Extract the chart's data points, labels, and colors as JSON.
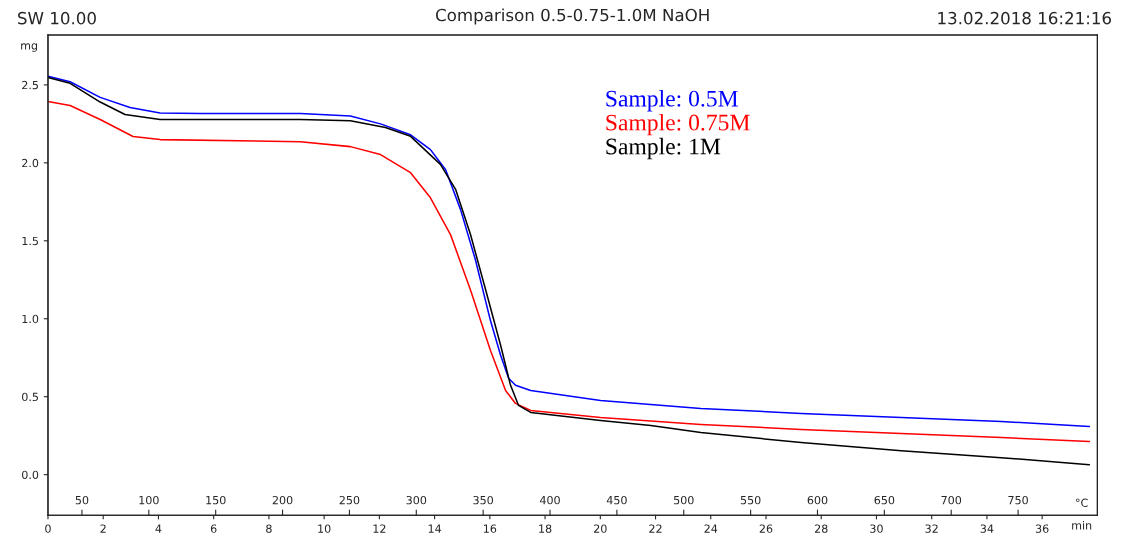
{
  "chart_data": {
    "type": "line",
    "title": "Comparison 0.5-0.75-1.0M NaOH",
    "annotations": [
      "SW 10.00",
      "13.02.2018 16:21:16"
    ],
    "ylabel": "mg",
    "xlabel": "min",
    "x2label": "°C",
    "xlim": [
      0,
      38
    ],
    "xticks": [
      0,
      2,
      4,
      6,
      8,
      10,
      12,
      14,
      16,
      18,
      20,
      22,
      24,
      26,
      28,
      30,
      32,
      34,
      36
    ],
    "x2lim": [
      24.6,
      809.3
    ],
    "x2ticks": [
      50,
      100,
      150,
      200,
      250,
      300,
      350,
      400,
      450,
      500,
      550,
      600,
      650,
      700,
      750
    ],
    "ylim": [
      -0.26,
      2.82
    ],
    "yticks": [
      {
        "value": 0,
        "label": "0.0"
      },
      0.5,
      {
        "value": 1,
        "label": "1.0"
      },
      1.5,
      {
        "value": 2,
        "label": "2.0"
      },
      2.5
    ],
    "grid": false,
    "legend": "top",
    "marker": "none",
    "line_style": "solid",
    "series": [
      {
        "name": "Sample: 0.5M",
        "color": "#0000ff",
        "x": [
          0,
          0.8,
          1.89,
          2.97,
          4.06,
          5.51,
          9.14,
          10.95,
          12.04,
          13.13,
          13.85,
          14.4,
          14.94,
          15.48,
          16.02,
          16.39,
          16.68,
          16.93,
          17.48,
          20.01,
          23.64,
          27.27,
          30.9,
          34.52,
          37.71
        ],
        "values": [
          2.555,
          2.52,
          2.42,
          2.355,
          2.32,
          2.317,
          2.317,
          2.3,
          2.25,
          2.18,
          2.085,
          1.956,
          1.7,
          1.377,
          0.99,
          0.766,
          0.618,
          0.573,
          0.54,
          0.476,
          0.425,
          0.393,
          0.367,
          0.341,
          0.309
        ]
      },
      {
        "name": "Sample: 0.75M",
        "color": "#ff0000",
        "x": [
          0,
          0.8,
          1.89,
          3.08,
          4.06,
          9.14,
          10.95,
          12.04,
          13.13,
          13.85,
          14.58,
          15.3,
          16.02,
          16.57,
          16.93,
          17.48,
          20.01,
          23.64,
          27.27,
          30.9,
          34.52,
          37.71
        ],
        "values": [
          2.394,
          2.368,
          2.278,
          2.169,
          2.149,
          2.136,
          2.104,
          2.053,
          1.937,
          1.776,
          1.538,
          1.184,
          0.798,
          0.54,
          0.457,
          0.412,
          0.367,
          0.322,
          0.29,
          0.264,
          0.238,
          0.212
        ]
      },
      {
        "name": "Sample: 1M",
        "color": "#000000",
        "x": [
          0,
          0.8,
          1.89,
          2.79,
          4.06,
          9.14,
          10.95,
          12.22,
          13.13,
          14.21,
          14.76,
          15.3,
          15.85,
          16.39,
          16.75,
          17.04,
          17.48,
          20.01,
          21.83,
          23.64,
          27.27,
          30.9,
          34.52,
          37.71
        ],
        "values": [
          2.548,
          2.51,
          2.39,
          2.31,
          2.278,
          2.278,
          2.27,
          2.227,
          2.17,
          1.99,
          1.83,
          1.54,
          1.184,
          0.83,
          0.573,
          0.444,
          0.399,
          0.347,
          0.315,
          0.27,
          0.206,
          0.154,
          0.109,
          0.064
        ]
      }
    ]
  }
}
